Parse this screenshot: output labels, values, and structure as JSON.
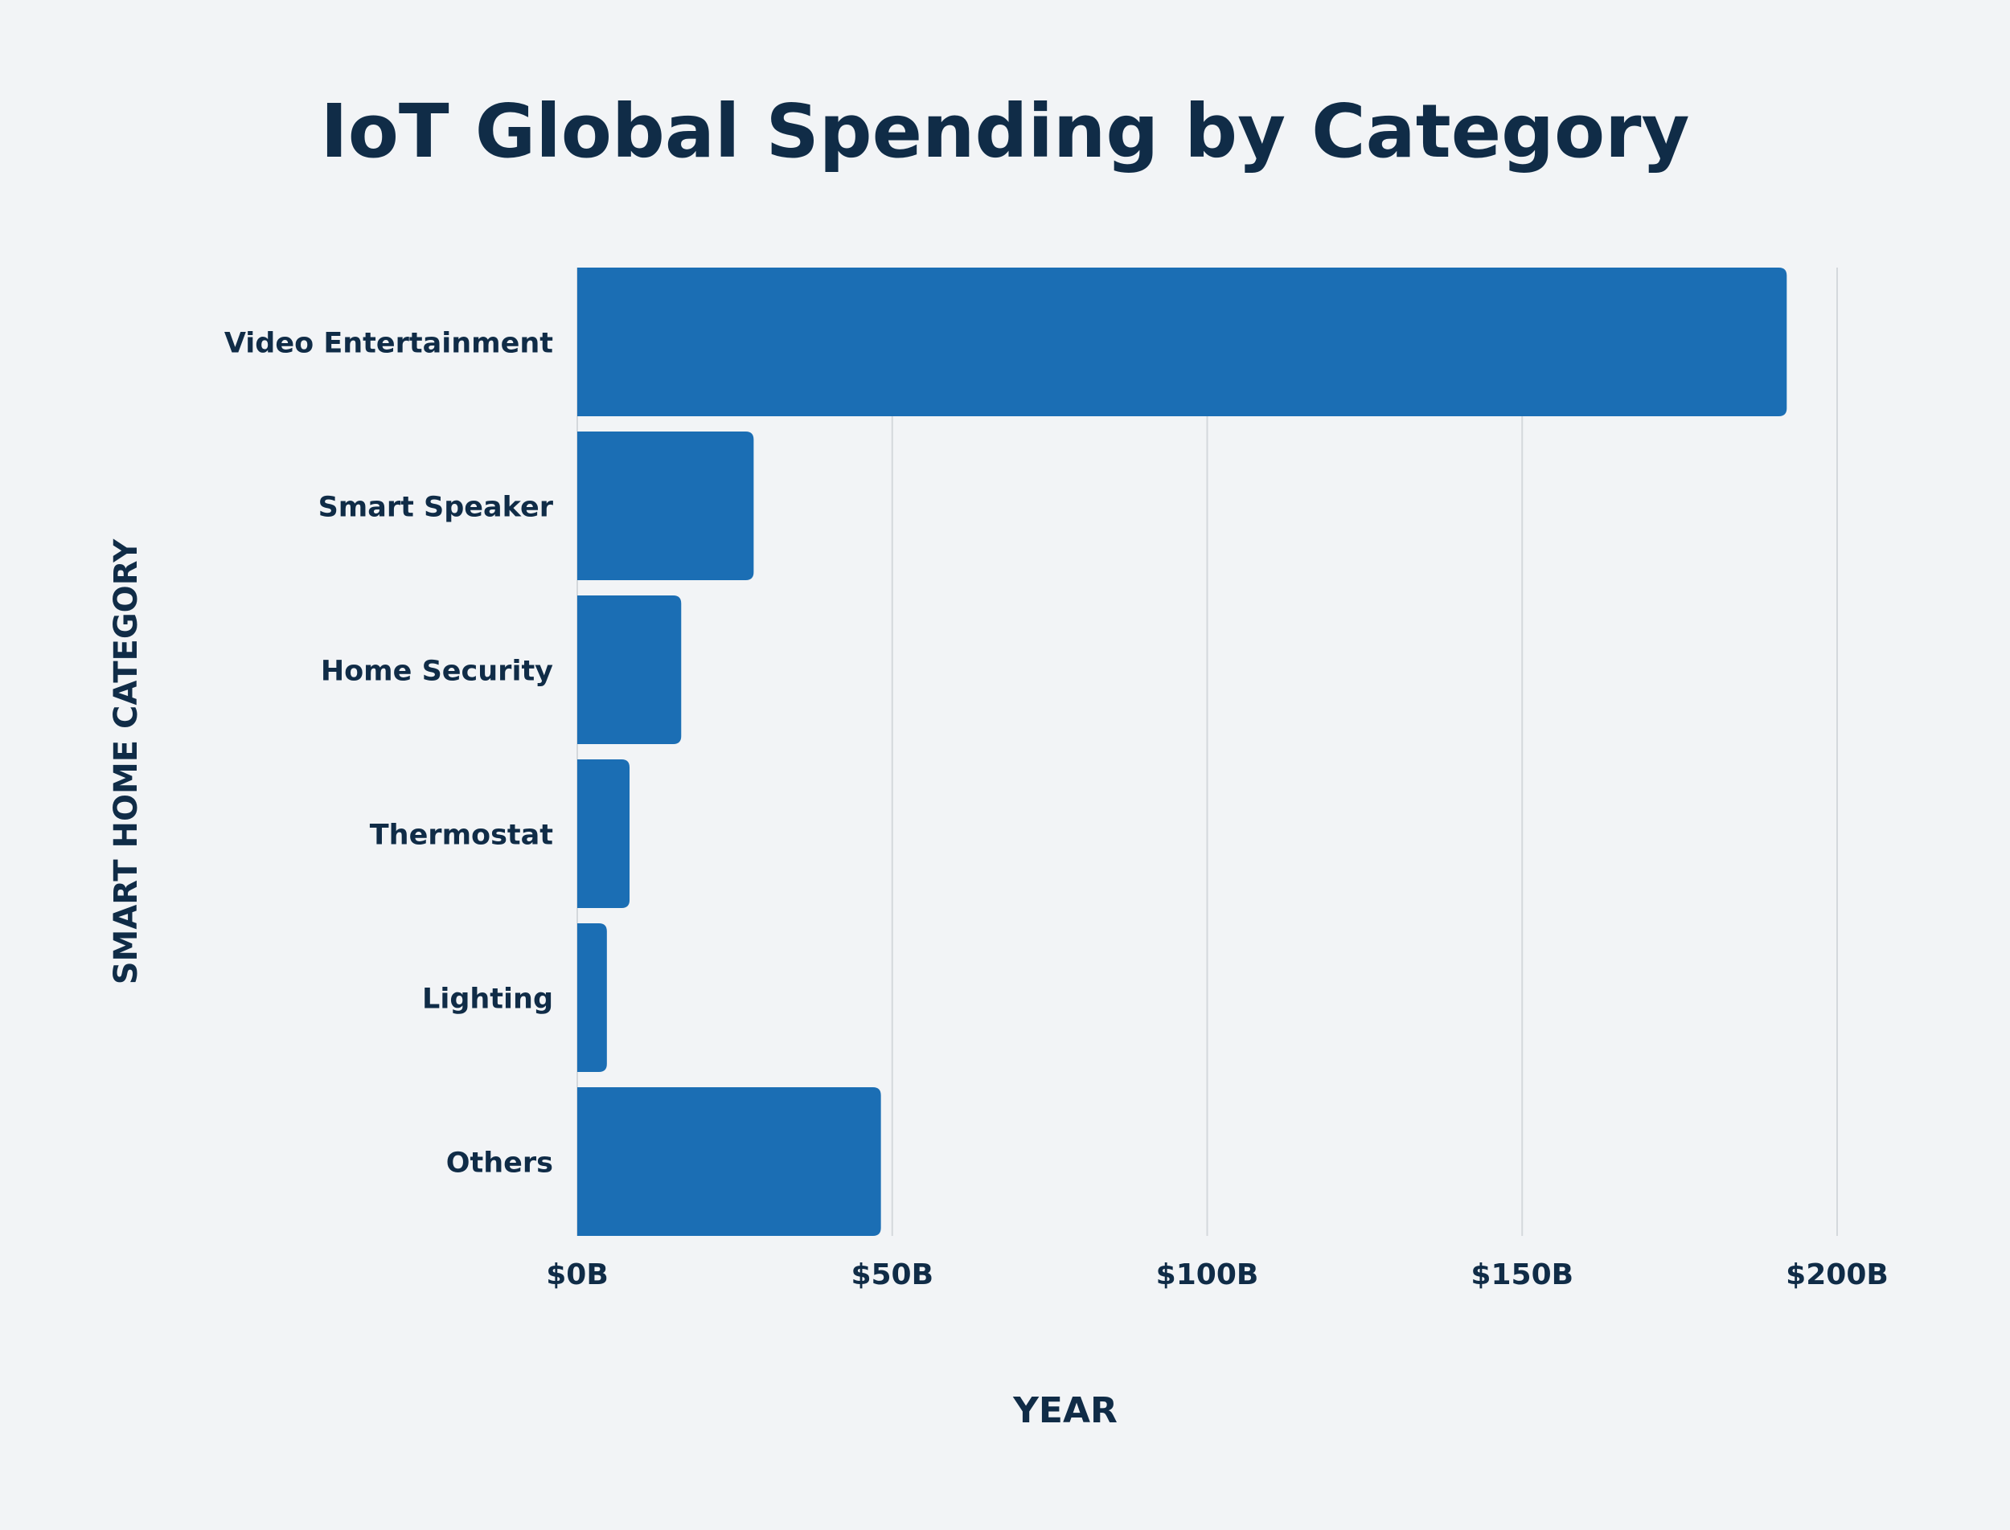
{
  "chart_data": {
    "type": "bar",
    "orientation": "horizontal",
    "title": "IoT Global Spending by Category",
    "xlabel": "YEAR",
    "ylabel": "SMART HOME CATEGORY",
    "categories": [
      "Video Entertainment",
      "Smart Speaker",
      "Home Security",
      "Thermostat",
      "Lighting",
      "Others"
    ],
    "values": [
      192,
      28,
      16.5,
      8.3,
      4.7,
      48.2
    ],
    "unit": "billion USD",
    "xlim": [
      0,
      200
    ],
    "xticks": [
      0,
      50,
      100,
      150,
      200
    ],
    "xtick_labels": [
      "$0B",
      "$50B",
      "$100B",
      "$150B",
      "$200B"
    ],
    "grid": "vertical",
    "legend": "none",
    "colors": {
      "bar": "#1b6eb4",
      "text": "#102c47",
      "background": "#f2f4f6",
      "grid": "#d4d8dc"
    }
  }
}
